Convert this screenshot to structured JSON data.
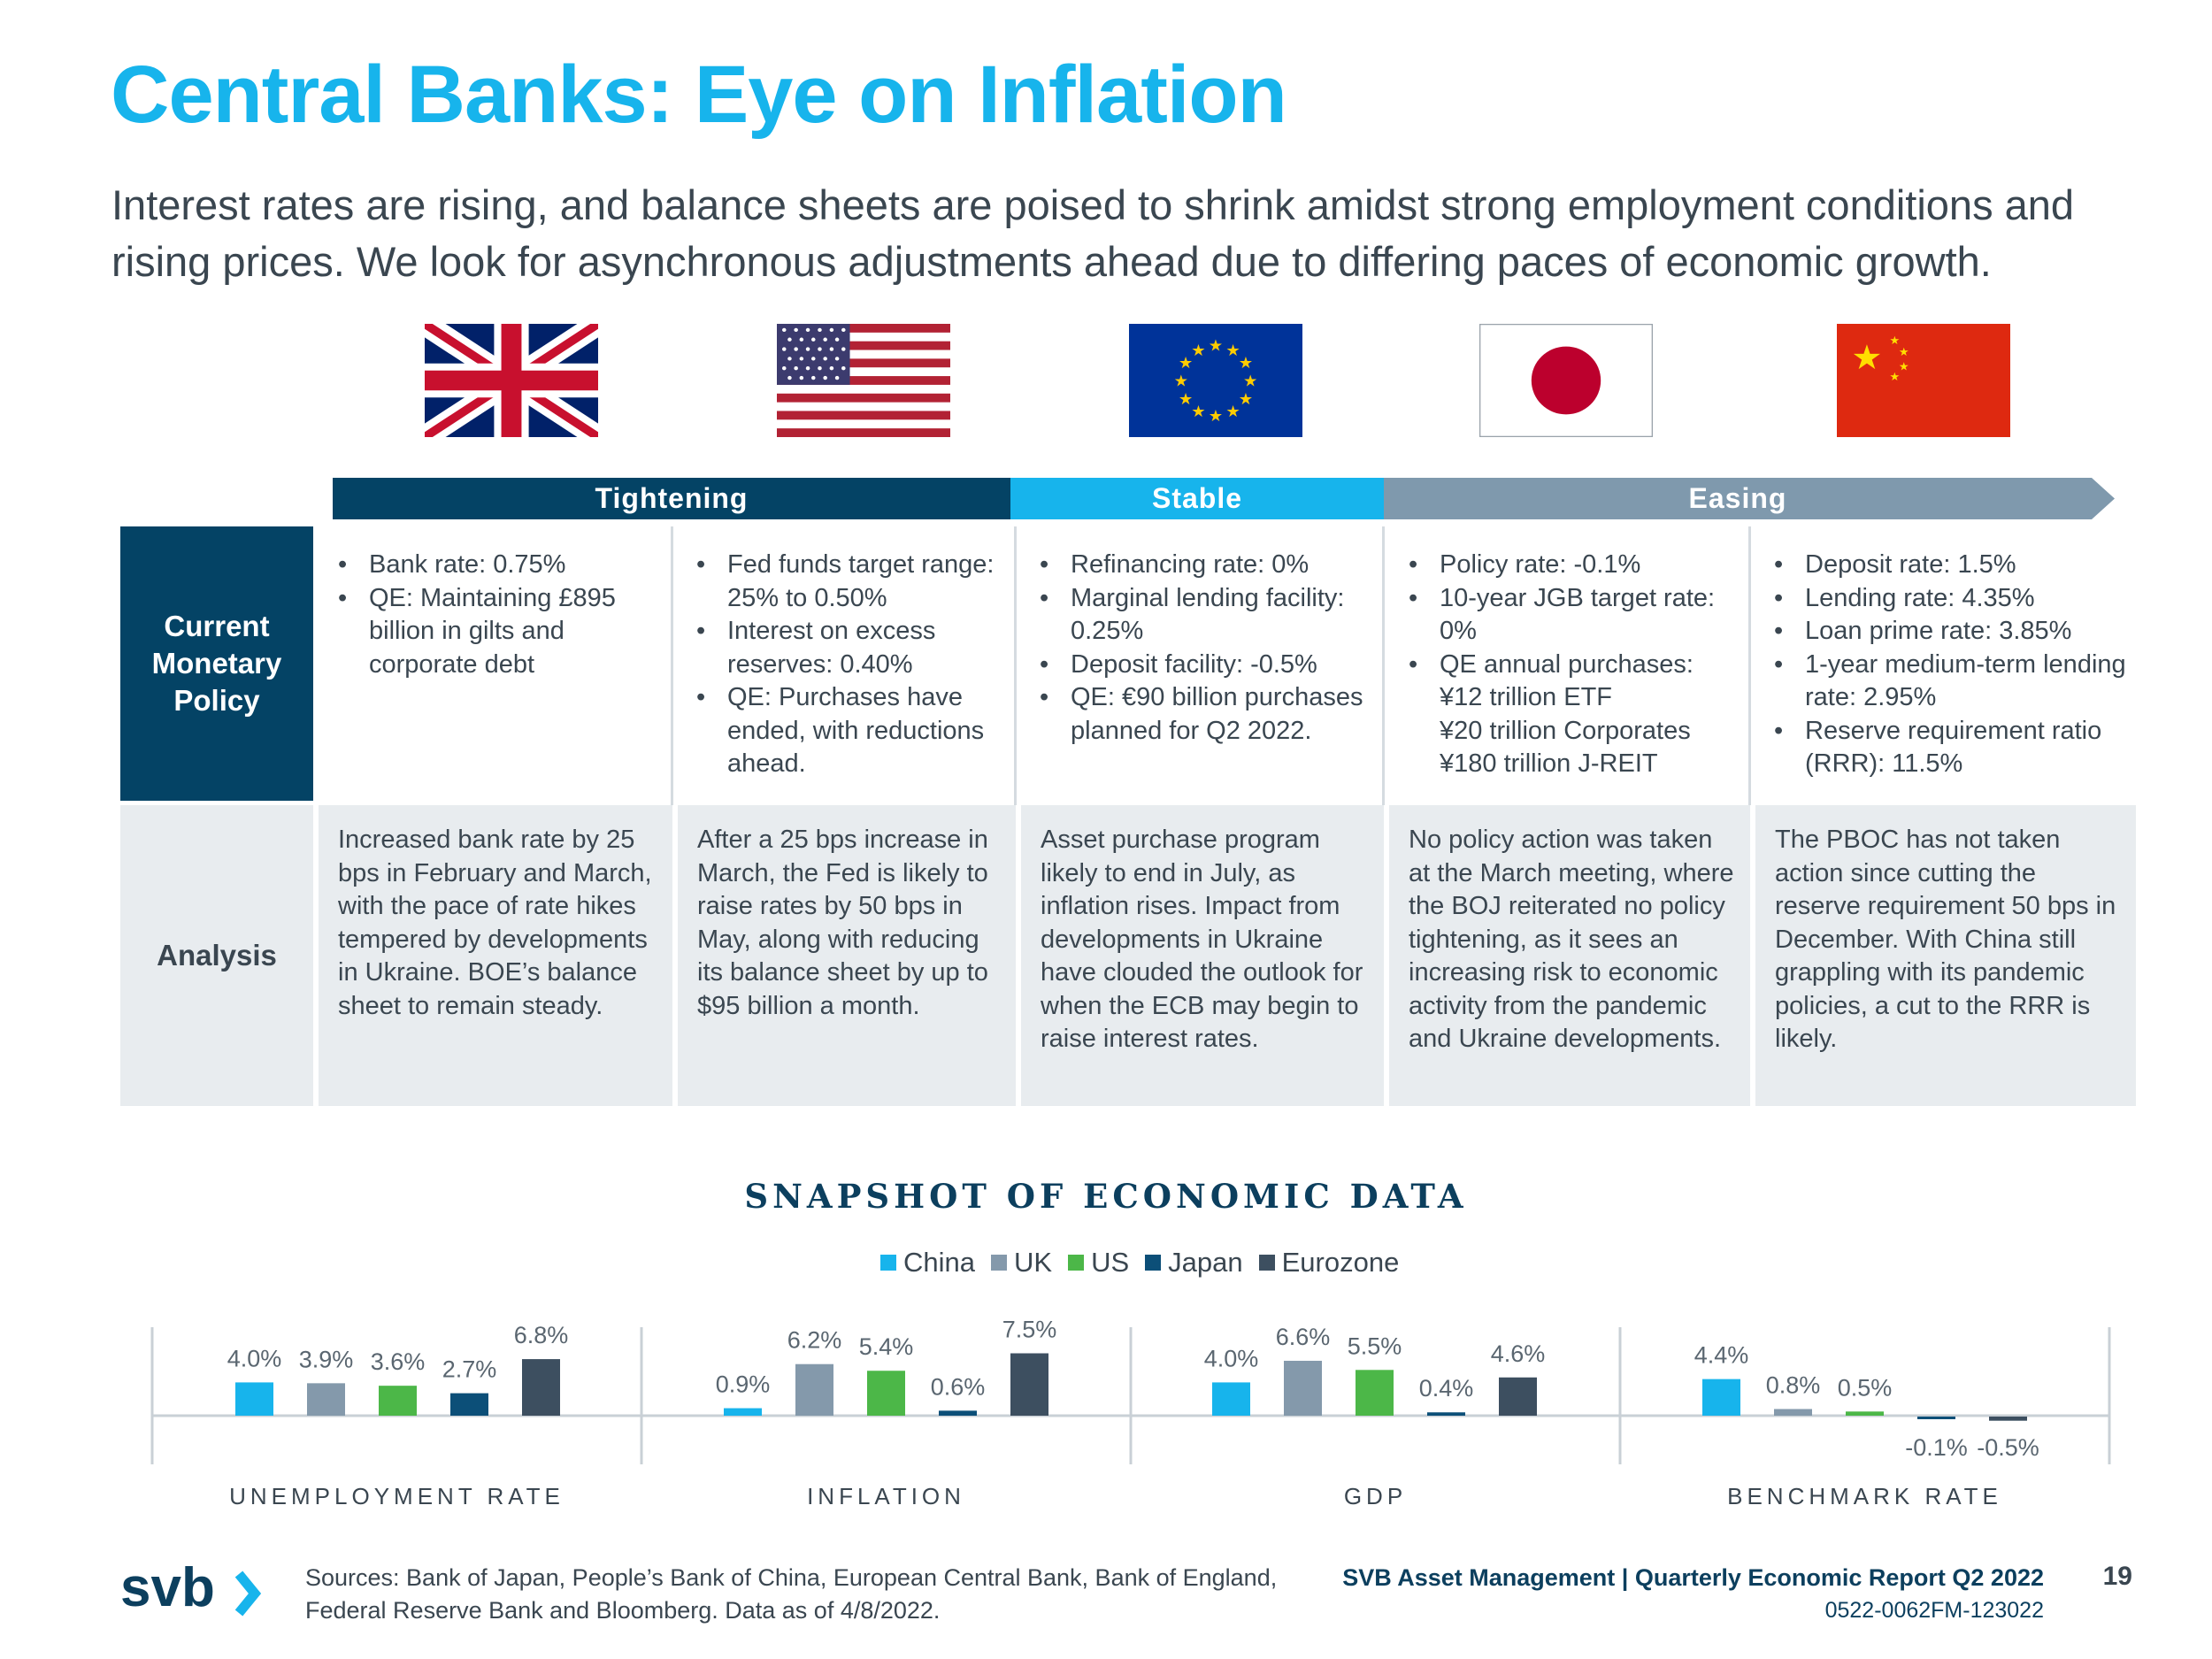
{
  "title": "Central Banks: Eye on Inflation",
  "subtitle": "Interest rates are rising, and balance sheets are poised to shrink amidst strong employment conditions and rising prices. We look for asynchronous adjustments ahead due to differing paces of economic growth.",
  "flags": [
    "uk-flag",
    "us-flag",
    "eu-flag",
    "japan-flag",
    "china-flag"
  ],
  "bands": {
    "tightening": "Tightening",
    "stable": "Stable",
    "easing": "Easing"
  },
  "colors": {
    "title": "#17b4ec",
    "navy": "#044365",
    "stable": "#17b4ec",
    "easing": "#7f99ad",
    "analysis_bg": "#e8ecef",
    "china": "#17b4ec",
    "uk": "#8499ab",
    "us": "#4cb748",
    "japan": "#0c4f78",
    "eurozone": "#3d4f60"
  },
  "rows": {
    "policy_label": "Current Monetary Policy",
    "analysis_label": "Analysis"
  },
  "policy": {
    "uk": [
      "Bank rate: 0.75%",
      "QE: Maintaining £895 billion in gilts and corporate debt"
    ],
    "us": [
      "Fed funds target range: 25% to 0.50%",
      "Interest on excess reserves: 0.40%",
      "QE: Purchases have ended, with reductions ahead."
    ],
    "eu": [
      "Refinancing rate: 0%",
      "Marginal lending facility: 0.25%",
      "Deposit facility: -0.5%",
      "QE: €90 billion purchases planned for Q2 2022."
    ],
    "japan": [
      "Policy rate: -0.1%",
      "10-year JGB target rate: 0%",
      "QE annual purchases:"
    ],
    "japan_sub": [
      "¥12 trillion ETF",
      "¥20 trillion Corporates",
      "¥180 trillion J-REIT"
    ],
    "china": [
      "Deposit rate: 1.5%",
      "Lending rate: 4.35%",
      "Loan prime rate: 3.85%",
      "1-year medium-term lending rate: 2.95%",
      "Reserve requirement ratio (RRR): 11.5%"
    ]
  },
  "analysis": {
    "uk": "Increased bank rate by 25 bps in February and March, with the pace of rate hikes tempered by developments in Ukraine. BOE’s balance sheet to remain steady.",
    "us": "After a 25 bps increase in March, the Fed is likely to raise rates by 50 bps in May, along with reducing its balance sheet by up to $95 billion a month.",
    "eu": "Asset purchase program likely to end in July, as inflation rises. Impact from developments in Ukraine have clouded the outlook for when the ECB may begin to raise interest rates.",
    "japan": "No policy action was taken at the March meeting, where the BOJ reiterated no policy tightening, as it sees an increasing risk to economic activity from the pandemic and Ukraine developments.",
    "china": "The PBOC has not taken action since cutting the reserve requirement 50 bps in December. With China still grappling with its pandemic policies, a cut to the RRR is likely."
  },
  "chart_title": "SNAPSHOT OF ECONOMIC DATA",
  "chart_data": {
    "type": "bar",
    "title": "SNAPSHOT OF ECONOMIC DATA",
    "categories": [
      "UNEMPLOYMENT RATE",
      "INFLATION",
      "GDP",
      "BENCHMARK RATE"
    ],
    "series": [
      {
        "name": "China",
        "values": [
          4.0,
          0.9,
          4.0,
          4.4
        ],
        "labels": [
          "4.0%",
          "0.9%",
          "4.0%",
          "4.4%"
        ]
      },
      {
        "name": "UK",
        "values": [
          3.9,
          6.2,
          6.6,
          0.8
        ],
        "labels": [
          "3.9%",
          "6.2%",
          "6.6%",
          "0.8%"
        ]
      },
      {
        "name": "US",
        "values": [
          3.6,
          5.4,
          5.5,
          0.5
        ],
        "labels": [
          "3.6%",
          "5.4%",
          "5.5%",
          "0.5%"
        ]
      },
      {
        "name": "Japan",
        "values": [
          2.7,
          0.6,
          0.4,
          -0.1
        ],
        "labels": [
          "2.7%",
          "0.6%",
          "0.4%",
          "-0.1%"
        ]
      },
      {
        "name": "Eurozone",
        "values": [
          6.8,
          7.5,
          4.6,
          -0.5
        ],
        "labels": [
          "6.8%",
          "7.5%",
          "4.6%",
          "-0.5%"
        ]
      }
    ],
    "legend": [
      "China",
      "UK",
      "US",
      "Japan",
      "Eurozone"
    ],
    "legend_position": "top-center",
    "ylim": [
      -1,
      8
    ]
  },
  "footer": {
    "sources_line1": "Sources: Bank of Japan, People’s Bank of China, European Central Bank, Bank of England,",
    "sources_line2": "Federal Reserve Bank and Bloomberg. Data as of 4/8/2022.",
    "report": "SVB Asset Management | Quarterly Economic Report Q2 2022",
    "code": "0522-0062FM-123022",
    "page": "19",
    "logo_text": "svb"
  }
}
